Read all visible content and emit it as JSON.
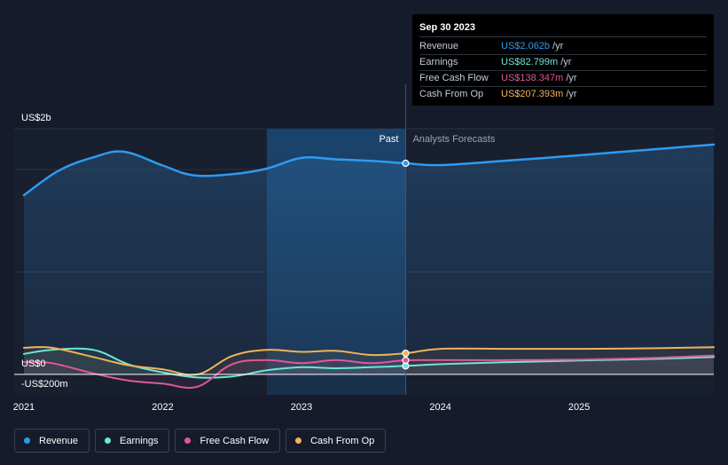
{
  "tooltip": {
    "date": "Sep 30 2023",
    "rows": [
      {
        "label": "Revenue",
        "value": "US$2.062b",
        "unit": "/yr",
        "color": "#2e9bf0"
      },
      {
        "label": "Earnings",
        "value": "US$82.799m",
        "unit": "/yr",
        "color": "#6be6d6"
      },
      {
        "label": "Free Cash Flow",
        "value": "US$138.347m",
        "unit": "/yr",
        "color": "#e0589a"
      },
      {
        "label": "Cash From Op",
        "value": "US$207.393m",
        "unit": "/yr",
        "color": "#f0b35a"
      }
    ]
  },
  "labels": {
    "past": "Past",
    "forecast": "Analysts Forecasts"
  },
  "legend": [
    {
      "label": "Revenue",
      "color": "#2e9bf0"
    },
    {
      "label": "Earnings",
      "color": "#6be6d6"
    },
    {
      "label": "Free Cash Flow",
      "color": "#e0589a"
    },
    {
      "label": "Cash From Op",
      "color": "#f0b35a"
    }
  ],
  "chart_data": {
    "type": "line",
    "title": "",
    "xlabel": "",
    "ylabel": "",
    "ylim": [
      -200,
      2400
    ],
    "xlim": [
      2020.93,
      2025.97
    ],
    "y_tick_labels": [
      {
        "value": 2000,
        "label": "US$2b"
      },
      {
        "value": 0,
        "label": "US$0"
      },
      {
        "value": -200,
        "label": "-US$200m"
      }
    ],
    "x_tick_labels": [
      {
        "value": 2021,
        "label": "2021"
      },
      {
        "value": 2022,
        "label": "2022"
      },
      {
        "value": 2023,
        "label": "2023"
      },
      {
        "value": 2024,
        "label": "2024"
      },
      {
        "value": 2025,
        "label": "2025"
      }
    ],
    "past_region_start": 2022.75,
    "forecast_start": 2023.75,
    "grid": true,
    "legend_position": "bottom-left",
    "series": [
      {
        "name": "Revenue",
        "color": "#2e9bf0",
        "x": [
          2021.0,
          2021.25,
          2021.5,
          2021.72,
          2022.0,
          2022.22,
          2022.5,
          2022.75,
          2023.0,
          2023.25,
          2023.5,
          2023.75,
          2024.0,
          2024.5,
          2025.0,
          2025.5,
          2025.97
        ],
        "values": [
          1750,
          1990,
          2120,
          2175,
          2040,
          1945,
          1955,
          2010,
          2115,
          2100,
          2085,
          2062,
          2045,
          2090,
          2140,
          2195,
          2245
        ]
      },
      {
        "name": "Earnings",
        "color": "#6be6d6",
        "x": [
          2021.0,
          2021.2,
          2021.5,
          2021.75,
          2022.0,
          2022.25,
          2022.5,
          2022.75,
          2023.0,
          2023.25,
          2023.5,
          2023.75,
          2024.0,
          2024.5,
          2025.0,
          2025.5,
          2025.97
        ],
        "values": [
          200,
          240,
          240,
          100,
          20,
          -30,
          -20,
          40,
          70,
          60,
          70,
          83,
          100,
          120,
          135,
          150,
          170
        ]
      },
      {
        "name": "Free Cash Flow",
        "color": "#e0589a",
        "x": [
          2021.0,
          2021.2,
          2021.5,
          2021.75,
          2022.0,
          2022.25,
          2022.5,
          2022.75,
          2023.0,
          2023.25,
          2023.5,
          2023.75,
          2024.0,
          2024.5,
          2025.0,
          2025.5,
          2025.97
        ],
        "values": [
          120,
          110,
          10,
          -60,
          -90,
          -120,
          100,
          140,
          110,
          140,
          110,
          138,
          140,
          140,
          145,
          160,
          185
        ]
      },
      {
        "name": "Cash From Op",
        "color": "#f0b35a",
        "x": [
          2021.0,
          2021.2,
          2021.5,
          2021.75,
          2022.0,
          2022.25,
          2022.5,
          2022.75,
          2023.0,
          2023.25,
          2023.5,
          2023.75,
          2024.0,
          2024.5,
          2025.0,
          2025.5,
          2025.97
        ],
        "values": [
          260,
          260,
          170,
          90,
          50,
          0,
          180,
          240,
          220,
          230,
          190,
          207,
          250,
          250,
          250,
          255,
          265
        ]
      }
    ]
  }
}
